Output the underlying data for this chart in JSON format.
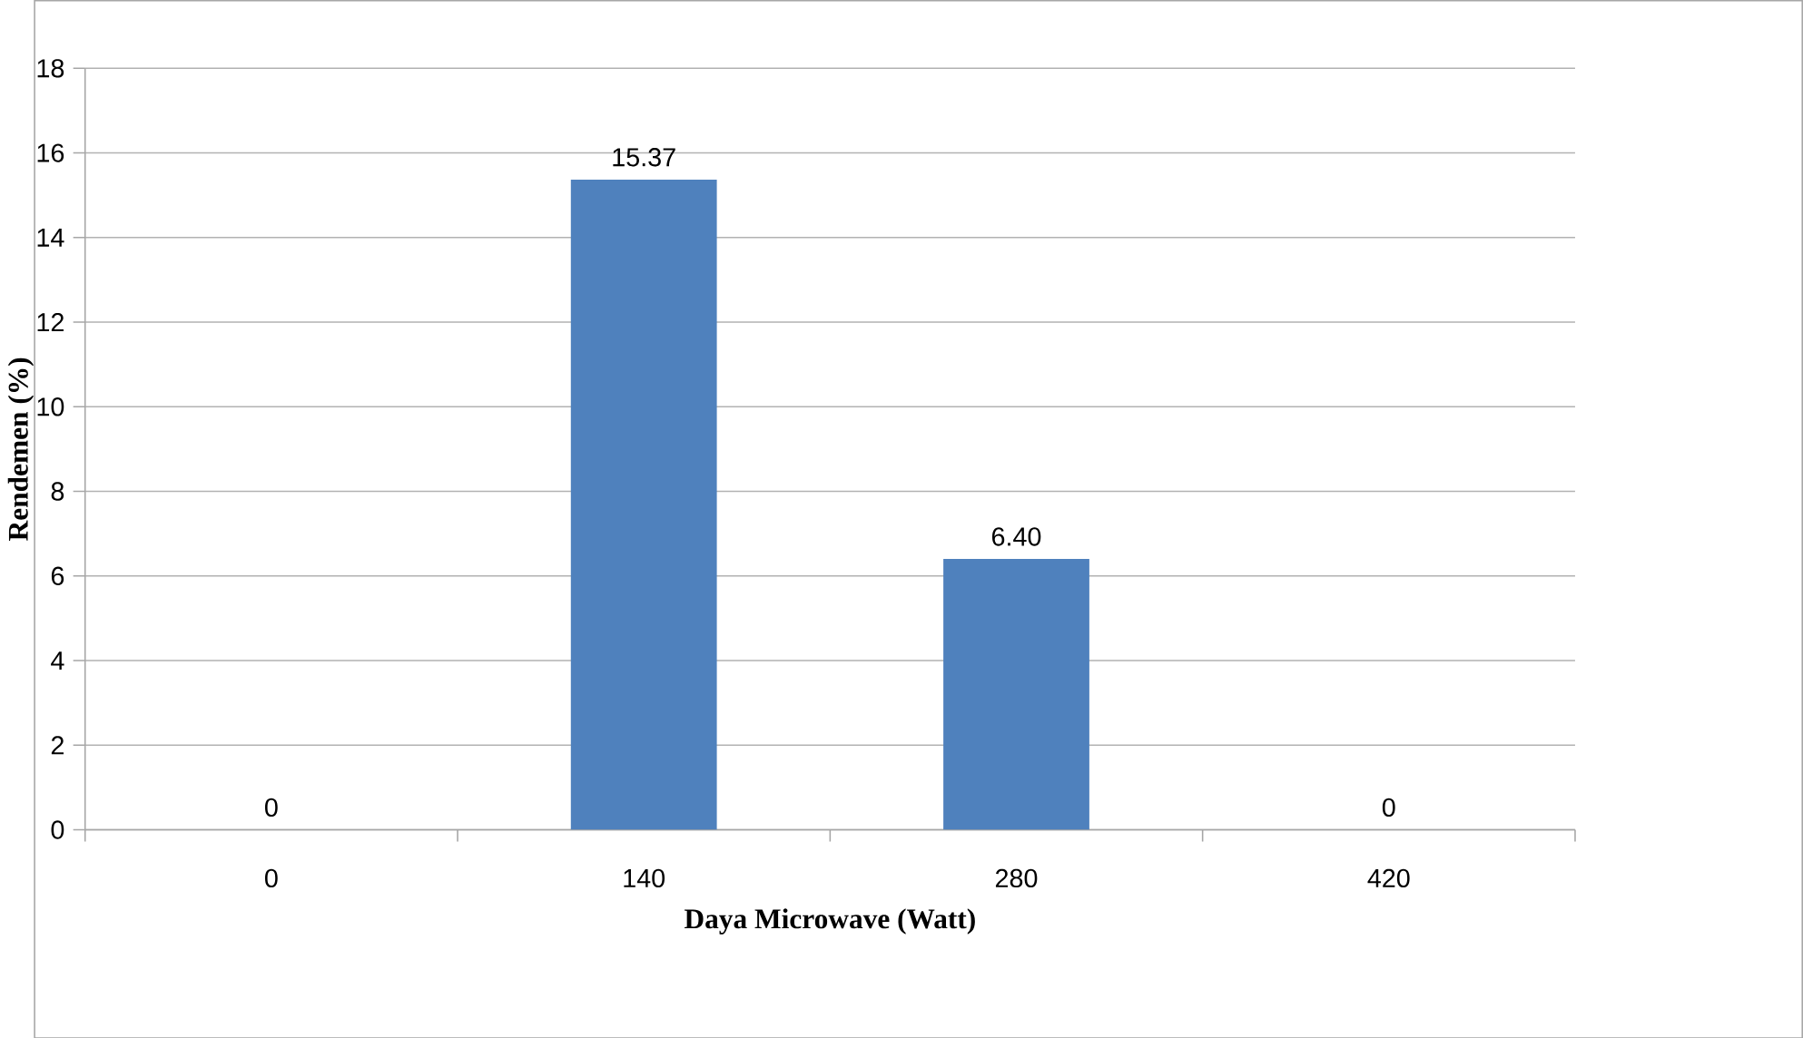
{
  "chart_data": {
    "type": "bar",
    "xlabel": "Daya Microwave (Watt)",
    "ylabel": "Rendemen (%)",
    "categories": [
      "0",
      "140",
      "280",
      "420"
    ],
    "values": [
      0,
      15.37,
      6.4,
      0
    ],
    "value_labels": [
      "0",
      "15.37",
      "6.40",
      "0"
    ],
    "color": "#4f81bd",
    "ylim": [
      0,
      18
    ],
    "yticks": [
      0,
      2,
      4,
      6,
      8,
      10,
      12,
      14,
      16,
      18
    ],
    "grid": "y"
  }
}
